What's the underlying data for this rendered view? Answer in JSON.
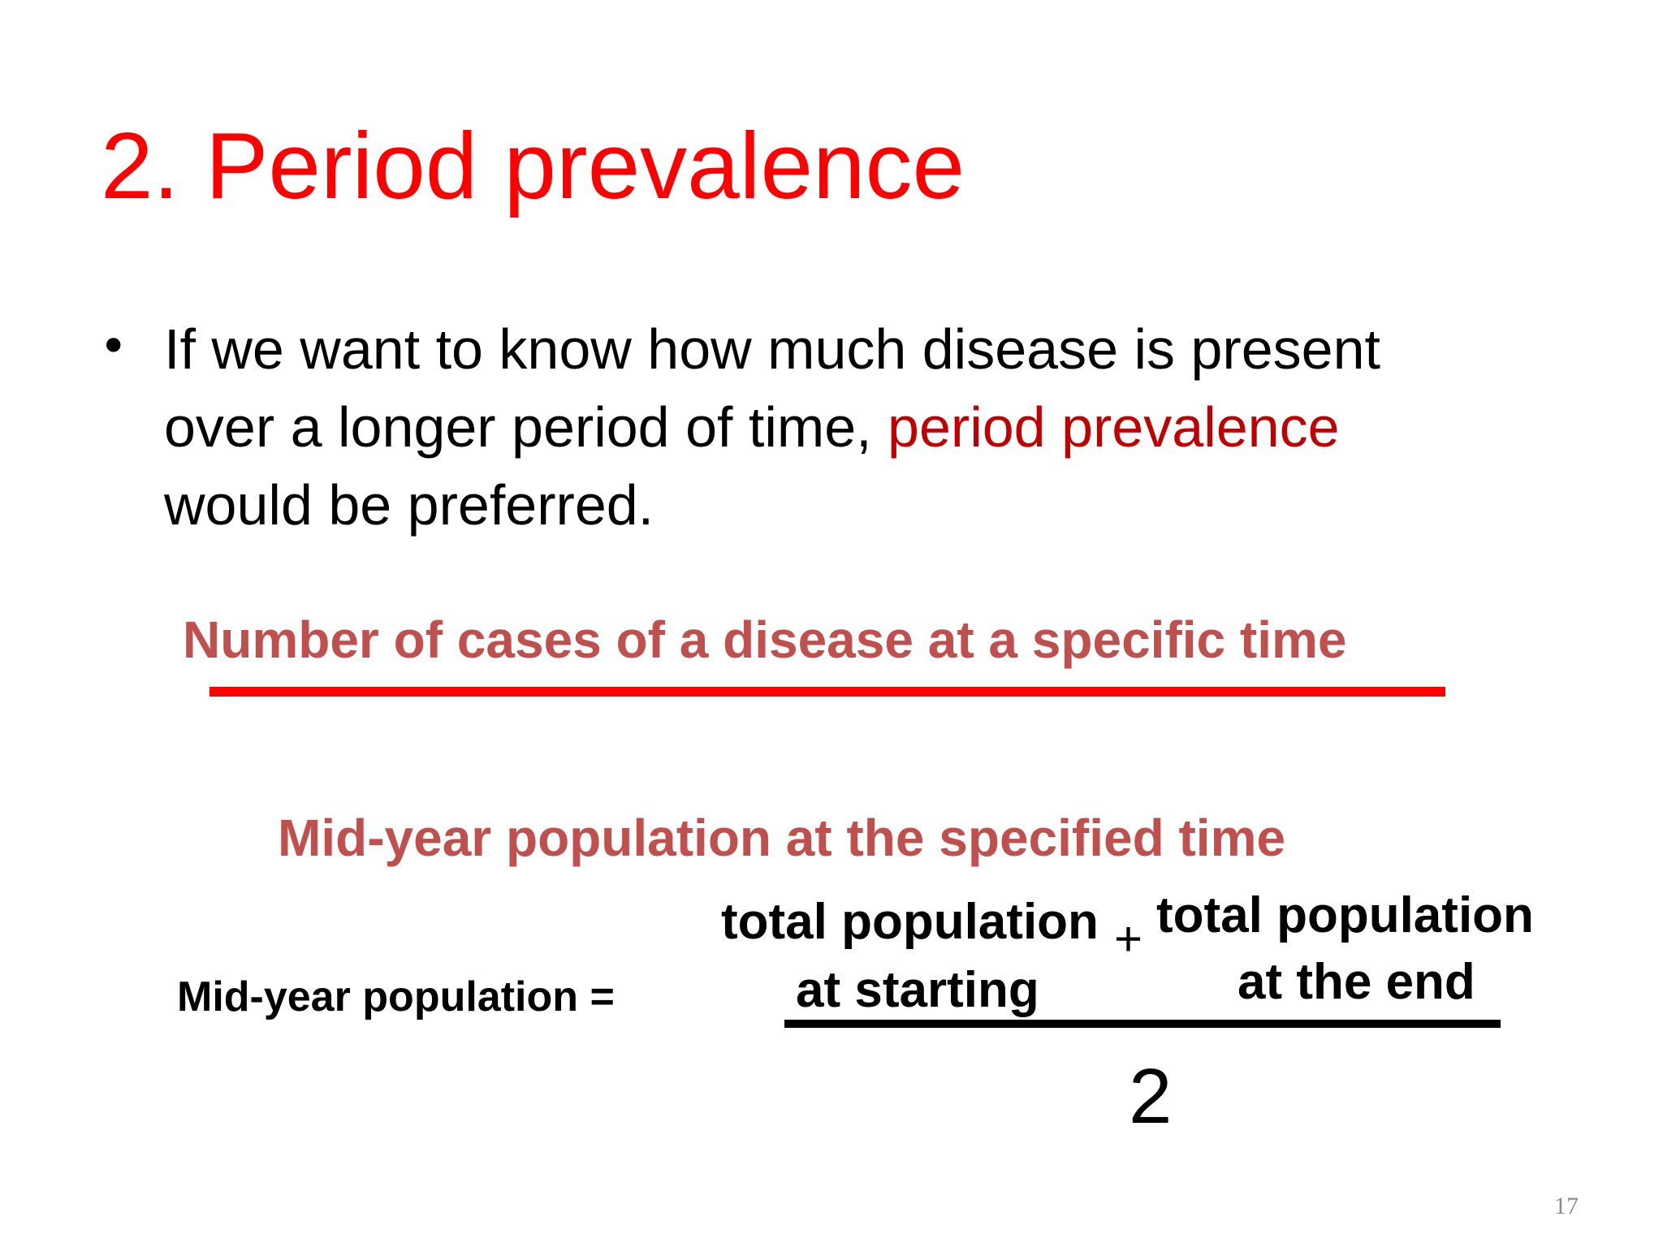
{
  "slide": {
    "title": "2. Period prevalence",
    "bullet": {
      "symbol": "•",
      "line1": "If we want to know how much disease is present",
      "line2_before": "over a longer period of time, ",
      "line2_highlight": "period prevalence",
      "line3": "would be preferred."
    },
    "fraction": {
      "numerator": "Number of cases of a disease at a specific time",
      "denominator": "Mid-year population at the specified time"
    },
    "mid_year_formula": {
      "label": "Mid-year population =",
      "left_term_line1": "total population",
      "left_term_line2": "at starting",
      "operator": "+",
      "right_term_line1": "total population",
      "right_term_line2": "at the end",
      "divisor": "2"
    },
    "page_number": "17"
  },
  "colors": {
    "title": "#ff0000",
    "highlight": "#c00000",
    "formula_text": "#c0504d",
    "fraction_bar": "#ff0000",
    "body_text": "#000000",
    "page_number": "#8c8c8c"
  }
}
